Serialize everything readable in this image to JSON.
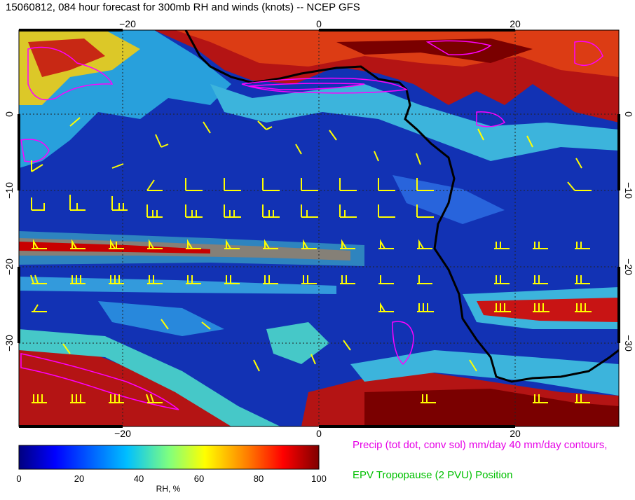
{
  "title": "15060812, 084 hour forecast for 300mb RH and winds (knots) -- NCEP GFS",
  "map": {
    "lon_ticks_top": [
      "−20",
      "0",
      "20"
    ],
    "lon_ticks_bottom": [
      "−20",
      "0",
      "20"
    ],
    "lat_ticks_left": [
      "0",
      "−10",
      "−20",
      "−30"
    ],
    "lat_ticks_right": [
      "0",
      "−10",
      "−20",
      "−30"
    ],
    "colors": {
      "rh_low": "#0a1496",
      "rh_mid_low": "#1e50d2",
      "rh_mid": "#3cc8c8",
      "rh_high": "#c80000",
      "rh_very_high": "#7a0000",
      "coastline": "#000000",
      "wind_barbs": "#ffff00",
      "precip_contours": "#ff00ff"
    }
  },
  "colorbar": {
    "title": "RH, %",
    "ticks": [
      "0",
      "20",
      "40",
      "60",
      "80",
      "100"
    ],
    "colors": [
      "#00007f",
      "#0000ff",
      "#007fff",
      "#00ffff",
      "#7fff7f",
      "#ffff00",
      "#ff7f00",
      "#ff0000",
      "#7f0000"
    ]
  },
  "legend": {
    "precip": "Precip (tot dot, conv sol) mm/day 40 mm/day contours,",
    "epv": "EPV Tropopause (2 PVU) Position"
  }
}
